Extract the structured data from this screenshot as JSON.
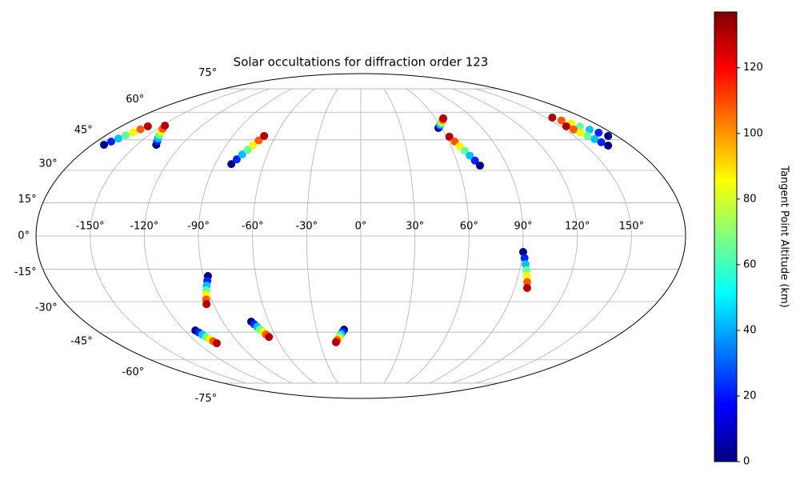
{
  "chart_data": {
    "type": "scatter",
    "projection": "mollweide",
    "title": "Solar occultations for diffraction order 123",
    "colorbar_label": "Tangent Point Altitude (km)",
    "cmap": "jet",
    "clim": [
      0,
      137
    ],
    "cticks": [
      0,
      20,
      40,
      60,
      80,
      100,
      120
    ],
    "xlim": [
      -180,
      180
    ],
    "ylim": [
      -90,
      90
    ],
    "grid": true,
    "xticks": [
      {
        "value": -150,
        "label": "-150°"
      },
      {
        "value": -120,
        "label": "-120°"
      },
      {
        "value": -90,
        "label": "-90°"
      },
      {
        "value": -60,
        "label": "-60°"
      },
      {
        "value": -30,
        "label": "-30°"
      },
      {
        "value": 0,
        "label": "0°"
      },
      {
        "value": 30,
        "label": "30°"
      },
      {
        "value": 60,
        "label": "60°"
      },
      {
        "value": 90,
        "label": "90°"
      },
      {
        "value": 120,
        "label": "120°"
      },
      {
        "value": 150,
        "label": "150°"
      }
    ],
    "yticks": [
      {
        "value": -75,
        "label": "-75°"
      },
      {
        "value": -60,
        "label": "-60°"
      },
      {
        "value": -45,
        "label": "-45°"
      },
      {
        "value": -30,
        "label": "-30°"
      },
      {
        "value": -15,
        "label": "-15°"
      },
      {
        "value": 0,
        "label": "0°"
      },
      {
        "value": 15,
        "label": "15°"
      },
      {
        "value": 30,
        "label": "30°"
      },
      {
        "value": 45,
        "label": "45°"
      },
      {
        "value": 60,
        "label": "60°"
      },
      {
        "value": 75,
        "label": "75°"
      }
    ],
    "series": [
      {
        "x": [
          -172,
          -170,
          -168,
          -166,
          -164,
          -162,
          -160
        ],
        "y": [
          42.5,
          44.1,
          45.7,
          47.3,
          48.9,
          50.5,
          52.1
        ],
        "c": [
          0,
          22,
          43,
          65,
          87,
          108,
          130
        ]
      },
      {
        "x": [
          -137,
          -138.8,
          -140.7,
          -142.5,
          -144.3,
          -146.2,
          -148
        ],
        "y": [
          42.5,
          44.2,
          45.8,
          47.5,
          49.2,
          50.8,
          52.5
        ],
        "c": [
          0,
          22,
          43,
          65,
          87,
          108,
          130
        ]
      },
      {
        "x": [
          -80,
          -78,
          -76,
          -74,
          -72,
          -70,
          -68
        ],
        "y": [
          33,
          35.3,
          37.7,
          40,
          42.3,
          44.7,
          47
        ],
        "c": [
          0,
          22,
          43,
          65,
          87,
          108,
          130
        ]
      },
      {
        "x": [
          57.6,
          59.1,
          60.5,
          62,
          63.4,
          64.9,
          66.3
        ],
        "y": [
          51.2,
          52.1,
          53,
          53.9,
          54.7,
          55.6,
          56.5
        ],
        "c": [
          0,
          22,
          43,
          65,
          87,
          108,
          130
        ]
      },
      {
        "x": [
          62,
          63.9,
          65.8,
          67.7,
          69.5,
          71.4,
          73.3
        ],
        "y": [
          46.6,
          44.2,
          41.8,
          39.5,
          37.1,
          34.7,
          32.3
        ],
        "c": [
          130,
          108,
          87,
          65,
          43,
          22,
          0
        ]
      },
      {
        "x": [
          155,
          158.2,
          161.3,
          164.5,
          167.7,
          170.8,
          174
        ],
        "y": [
          56.9,
          55.3,
          53.6,
          52,
          50.3,
          48.7,
          47
        ],
        "c": [
          130,
          108,
          87,
          65,
          43,
          22,
          0
        ]
      },
      {
        "x": [
          154.4,
          156.2,
          157.9,
          159.7,
          161.5,
          163.2,
          165
        ],
        "y": [
          52.1,
          50.4,
          48.8,
          47.1,
          45.4,
          43.8,
          42.1
        ],
        "c": [
          130,
          108,
          87,
          65,
          43,
          22,
          0
        ]
      },
      {
        "x": [
          90.4,
          91.6,
          92.7,
          93.9,
          95,
          96.2,
          97.3
        ],
        "y": [
          -7.2,
          -9.9,
          -12.7,
          -15.4,
          -18.1,
          -20.9,
          -23.6
        ],
        "c": [
          0,
          22,
          43,
          65,
          87,
          108,
          130
        ]
      },
      {
        "x": [
          -87.4,
          -88.5,
          -89.7,
          -90.8,
          -91.9,
          -93.1,
          -94.2
        ],
        "y": [
          -18.1,
          -20.3,
          -22.5,
          -24.7,
          -26.8,
          -29,
          -31.2
        ],
        "c": [
          0,
          22,
          43,
          65,
          87,
          108,
          130
        ]
      },
      {
        "x": [
          -112.7,
          -111.6,
          -110.6,
          -109.5,
          -108.4,
          -107.4,
          -106.3
        ],
        "y": [
          -44.1,
          -45.2,
          -46.3,
          -47.5,
          -48.6,
          -49.7,
          -50.8
        ],
        "c": [
          0,
          22,
          43,
          65,
          87,
          108,
          130
        ]
      },
      {
        "x": [
          -71.5,
          -70.4,
          -69.3,
          -68.3,
          -67.2,
          -66.1,
          -65
        ],
        "y": [
          -39.7,
          -41,
          -42.3,
          -43.6,
          -44.9,
          -46.2,
          -47.5
        ],
        "c": [
          0,
          22,
          43,
          65,
          87,
          108,
          130
        ]
      },
      {
        "x": [
          -11.4,
          -12.5,
          -13.7,
          -14.8,
          -15.9,
          -17.1,
          -18.2
        ],
        "y": [
          -43.7,
          -44.8,
          -45.9,
          -47,
          -48.1,
          -49.2,
          -50.3
        ],
        "c": [
          0,
          22,
          43,
          65,
          87,
          108,
          130
        ]
      }
    ]
  }
}
